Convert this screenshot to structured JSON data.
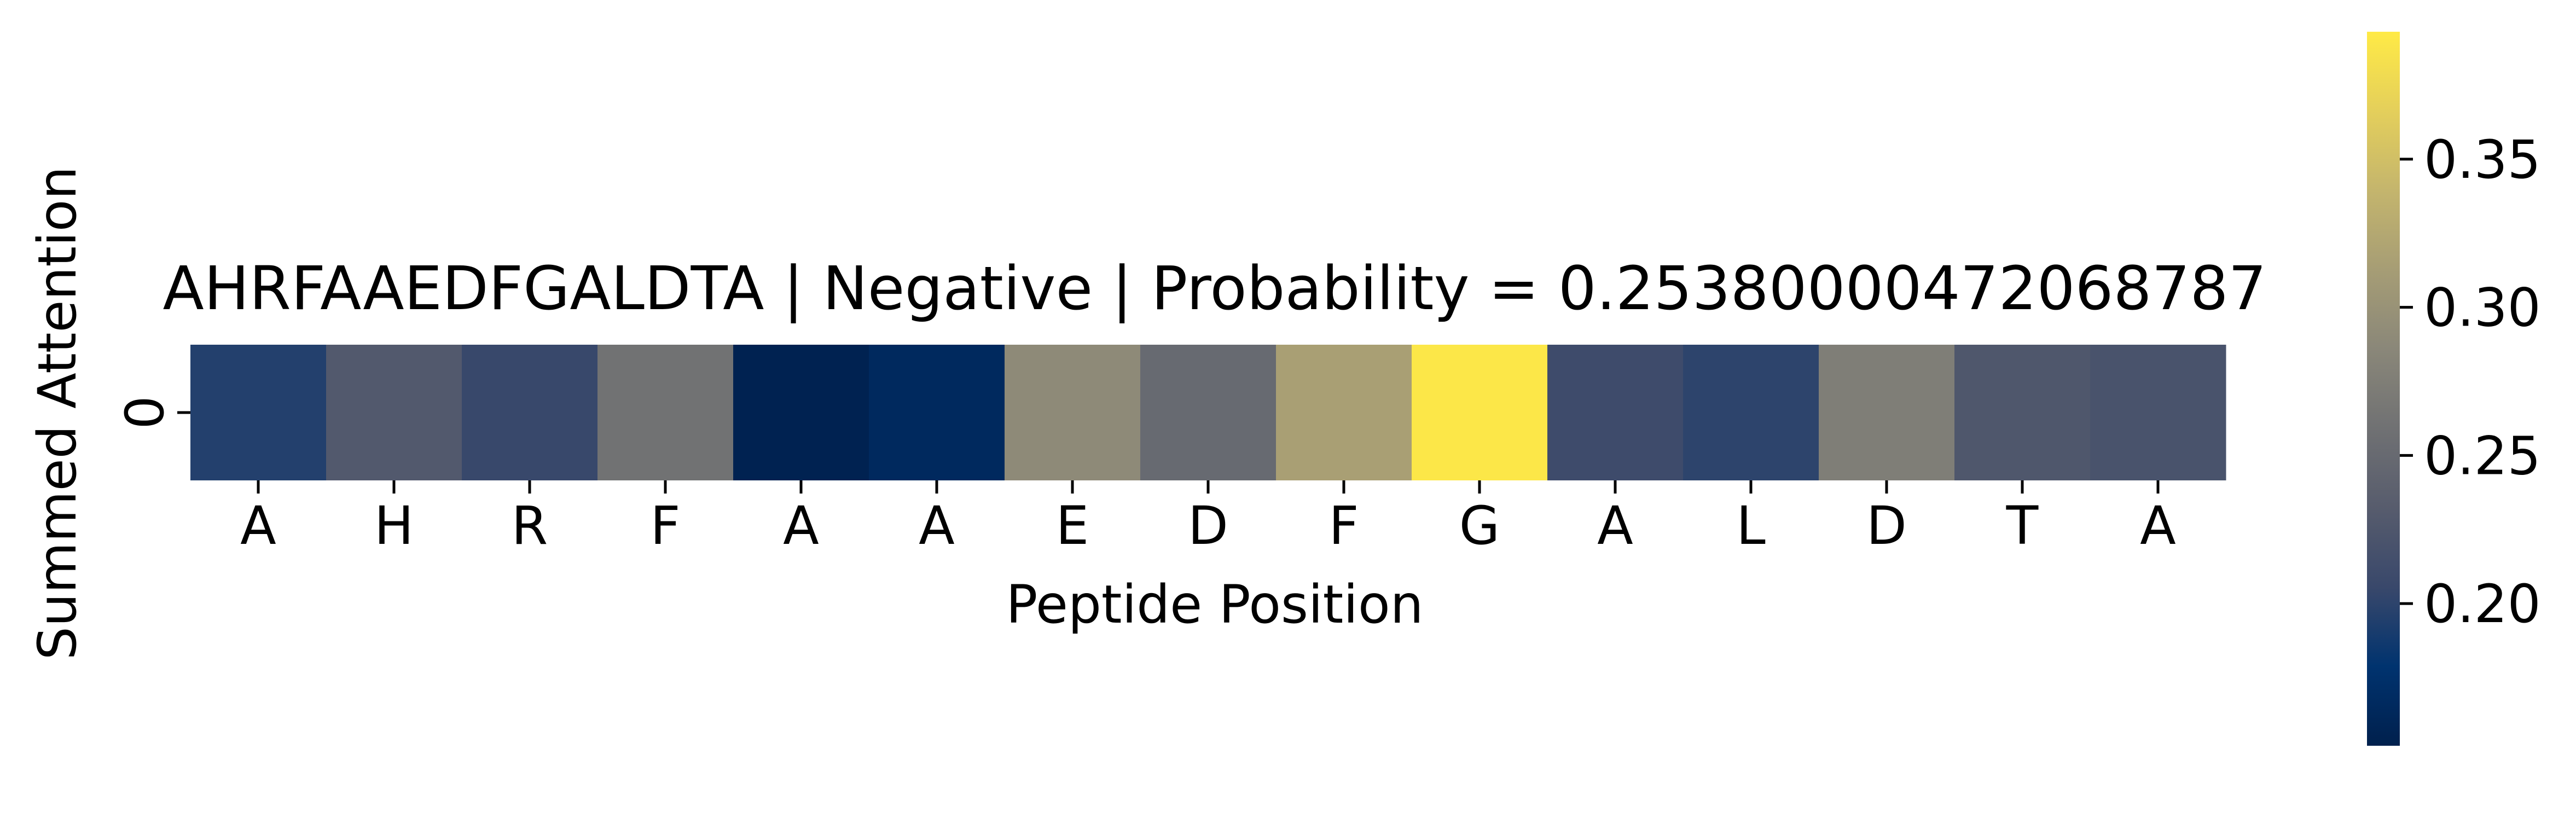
{
  "chart_data": {
    "type": "heatmap",
    "title": "AHRFAAEDFGALDTA | Negative | Probability = 0.25380000472068787",
    "xlabel": "Peptide Position",
    "ylabel": "Summed Attention",
    "x_tick_labels": [
      "A",
      "H",
      "R",
      "F",
      "A",
      "A",
      "E",
      "D",
      "F",
      "G",
      "A",
      "L",
      "D",
      "T",
      "A"
    ],
    "y_tick_labels": [
      "0"
    ],
    "rows": [
      {
        "label": "0",
        "values": [
          0.195,
          0.228,
          0.205,
          0.26,
          0.155,
          0.165,
          0.29,
          0.25,
          0.315,
          0.39,
          0.21,
          0.2,
          0.275,
          0.225,
          0.22
        ]
      }
    ],
    "colormap": "cividis",
    "colorbar": {
      "vmin": 0.152,
      "vmax": 0.393,
      "ticks": [
        0.2,
        0.25,
        0.3,
        0.35
      ],
      "tick_labels": [
        "0.20",
        "0.25",
        "0.30",
        "0.35"
      ]
    },
    "colors": {
      "cividis_stops": [
        "#00204d",
        "#00336f",
        "#39486b",
        "#575c6d",
        "#707173",
        "#8a8779",
        "#a69d75",
        "#c4b56d",
        "#e4cf5b",
        "#ffea46"
      ]
    }
  }
}
